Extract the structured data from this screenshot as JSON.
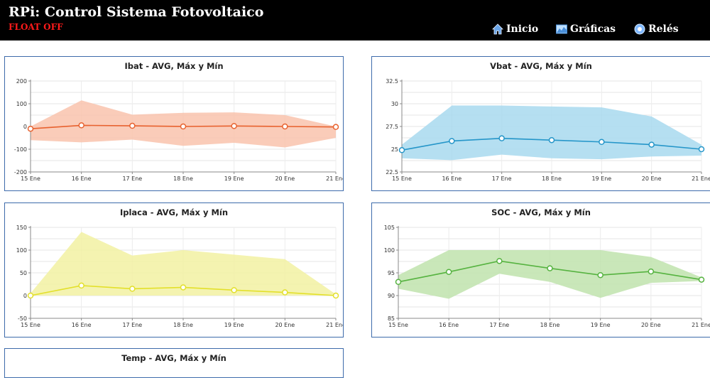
{
  "header": {
    "title": "RPi: Control Sistema Fotovoltaico",
    "status": "FLOAT OFF",
    "nav": [
      {
        "label": "Inicio",
        "icon": "home-icon"
      },
      {
        "label": "Gráficas",
        "icon": "chart-image-icon"
      },
      {
        "label": "Relés",
        "icon": "relay-circle-icon"
      }
    ]
  },
  "chart_data": [
    {
      "type": "line",
      "title": "Ibat - AVG, Máx y Mín",
      "categories": [
        "15 Ene",
        "16 Ene",
        "17 Ene",
        "18 Ene",
        "19 Ene",
        "20 Ene",
        "21 Ene"
      ],
      "x_days": [
        15,
        16,
        17,
        18,
        19,
        20,
        21
      ],
      "yticks": [
        200,
        100,
        0,
        -100,
        -200
      ],
      "ylim": [
        -200,
        200
      ],
      "series": [
        {
          "role": "avg",
          "values": [
            -10,
            5,
            3,
            0,
            2,
            0,
            -2
          ]
        },
        {
          "role": "max",
          "values": [
            0,
            115,
            52,
            60,
            62,
            50,
            0
          ]
        },
        {
          "role": "min",
          "values": [
            -60,
            -70,
            -58,
            -85,
            -72,
            -92,
            -50
          ]
        }
      ],
      "colors": {
        "line": "#e8622f",
        "band": "#f9c3ad"
      },
      "grid": true,
      "legend": false
    },
    {
      "type": "line",
      "title": "Vbat - AVG, Máx y Mín",
      "categories": [
        "15 Ene",
        "16 Ene",
        "17 Ene",
        "18 Ene",
        "19 Ene",
        "20 Ene",
        "21 Ene"
      ],
      "x_days": [
        15,
        16,
        17,
        18,
        19,
        20,
        21
      ],
      "yticks": [
        32.5,
        30,
        27.5,
        25,
        22.5
      ],
      "ylim": [
        22.5,
        32.5
      ],
      "series": [
        {
          "role": "avg",
          "values": [
            24.9,
            25.9,
            26.2,
            26.0,
            25.8,
            25.5,
            25.0
          ]
        },
        {
          "role": "max",
          "values": [
            25.5,
            29.8,
            29.8,
            29.7,
            29.6,
            28.6,
            25.5
          ]
        },
        {
          "role": "min",
          "values": [
            24.0,
            23.8,
            24.4,
            24.0,
            23.9,
            24.2,
            24.3
          ]
        }
      ],
      "colors": {
        "line": "#2596c9",
        "band": "#a8d9ee"
      },
      "grid": true,
      "legend": false
    },
    {
      "type": "line",
      "title": "Iplaca - AVG, Máx y Mín",
      "categories": [
        "15 Ene",
        "16 Ene",
        "17 Ene",
        "18 Ene",
        "19 Ene",
        "20 Ene",
        "21 Ene"
      ],
      "x_days": [
        15,
        16,
        17,
        18,
        19,
        20,
        21
      ],
      "yticks": [
        150,
        100,
        50,
        0,
        -50
      ],
      "ylim": [
        -50,
        150
      ],
      "series": [
        {
          "role": "avg",
          "values": [
            0,
            22,
            15,
            18,
            12,
            7,
            0
          ]
        },
        {
          "role": "max",
          "values": [
            5,
            140,
            88,
            100,
            90,
            80,
            3
          ]
        },
        {
          "role": "min",
          "values": [
            0,
            0,
            0,
            0,
            0,
            0,
            0
          ]
        }
      ],
      "colors": {
        "line": "#e3e02a",
        "band": "#f2f1a2"
      },
      "grid": true,
      "legend": false
    },
    {
      "type": "line",
      "title": "SOC - AVG, Máx y Mín",
      "categories": [
        "15 Ene",
        "16 Ene",
        "17 Ene",
        "18 Ene",
        "19 Ene",
        "20 Ene",
        "21 Ene"
      ],
      "x_days": [
        15,
        16,
        17,
        18,
        19,
        20,
        21
      ],
      "yticks": [
        105,
        100,
        95,
        90,
        85
      ],
      "ylim": [
        85,
        105
      ],
      "series": [
        {
          "role": "avg",
          "values": [
            93.0,
            95.2,
            97.6,
            96.0,
            94.5,
            95.3,
            93.5
          ]
        },
        {
          "role": "max",
          "values": [
            94.5,
            100.0,
            100.0,
            100.0,
            100.0,
            98.5,
            94.0
          ]
        },
        {
          "role": "min",
          "values": [
            91.5,
            89.3,
            94.8,
            93.0,
            89.5,
            92.8,
            93.2
          ]
        }
      ],
      "colors": {
        "line": "#56b340",
        "band": "#bfe3ad"
      },
      "grid": true,
      "legend": false
    },
    {
      "type": "line",
      "title": "Temp - AVG, Máx y Mín"
    }
  ]
}
